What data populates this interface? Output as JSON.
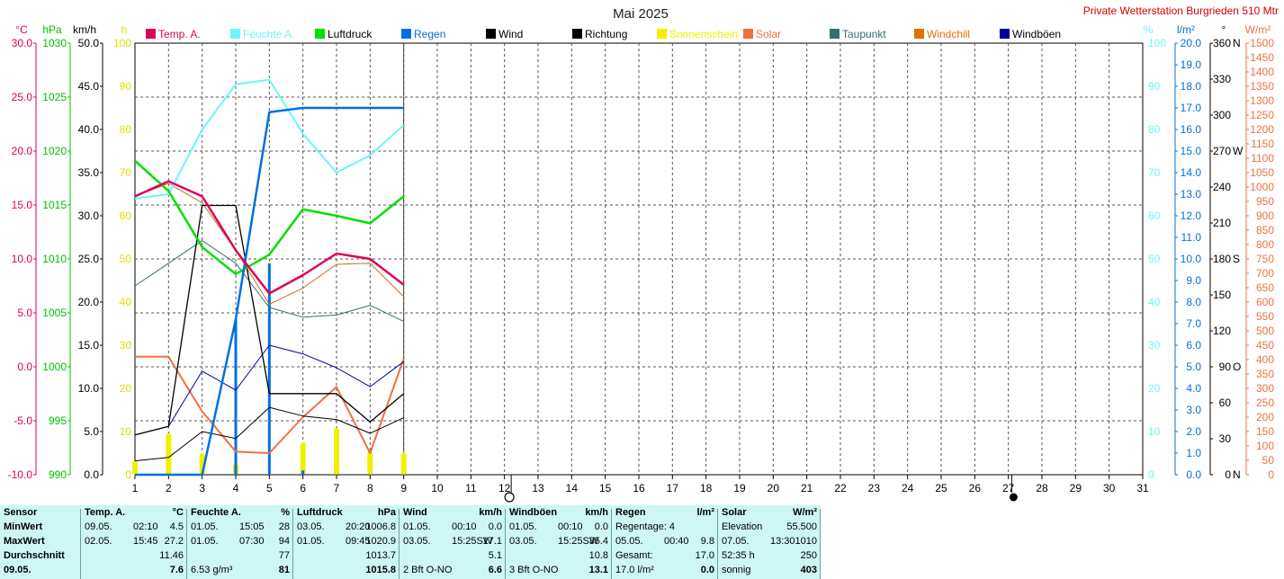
{
  "title": "Mai 2025",
  "station": "Private Wetterstation Burgrieden 510 Mtr",
  "left_axes": {
    "units": [
      "°C",
      "hPa",
      "km/h",
      "h"
    ],
    "temp_ticks": [
      "30.0",
      "25.0",
      "20.0",
      "15.0",
      "10.0",
      "5.0",
      "0.0",
      "-5.0",
      "-10.0"
    ],
    "hpa_ticks": [
      "1030",
      "1025",
      "1020",
      "1015",
      "1010",
      "1005",
      "1000",
      "995",
      "990"
    ],
    "kmh_ticks": [
      "50.0",
      "45.0",
      "40.0",
      "35.0",
      "30.0",
      "25.0",
      "20.0",
      "15.0",
      "10.0",
      "5.0",
      "0.0"
    ],
    "h_ticks": [
      "100",
      "90",
      "80",
      "70",
      "60",
      "50",
      "40",
      "30",
      "20",
      "10",
      "0"
    ]
  },
  "right_axes": {
    "units": [
      "%",
      "l/m²",
      "°",
      "W/m²"
    ],
    "pct_ticks": [
      "100",
      "90",
      "80",
      "70",
      "60",
      "50",
      "40",
      "30",
      "20",
      "10",
      "0"
    ],
    "rain_ticks": [
      "20.0",
      "19.0",
      "18.0",
      "17.0",
      "16.0",
      "15.0",
      "14.0",
      "13.0",
      "12.0",
      "11.0",
      "10.0",
      "9.0",
      "8.0",
      "7.0",
      "6.0",
      "5.0",
      "4.0",
      "3.0",
      "2.0",
      "1.0",
      "0.0"
    ],
    "deg_ticks": [
      "360",
      "330",
      "300",
      "270",
      "240",
      "210",
      "180",
      "150",
      "120",
      "90",
      "60",
      "30",
      "0"
    ],
    "dir_letters": {
      "360": "N",
      "270": "W",
      "180": "S",
      "90": "O",
      "0": "N"
    },
    "wm2_ticks": [
      "1500",
      "1450",
      "1400",
      "1350",
      "1300",
      "1250",
      "1200",
      "1150",
      "1100",
      "1050",
      "1000",
      "950",
      "900",
      "850",
      "800",
      "750",
      "700",
      "650",
      "600",
      "550",
      "500",
      "450",
      "400",
      "350",
      "300",
      "250",
      "200",
      "150",
      "100",
      "50",
      "0"
    ]
  },
  "legend": [
    {
      "name": "Temp. A.",
      "color": "#e0005a"
    },
    {
      "name": "Feuchte A.",
      "color": "#6ef6f6"
    },
    {
      "name": "Luftdruck",
      "color": "#00e000"
    },
    {
      "name": "Regen",
      "color": "#0070e0"
    },
    {
      "name": "Wind",
      "color": "#000000"
    },
    {
      "name": "Richtung",
      "color": "#000000"
    },
    {
      "name": "Sonnenschein",
      "color": "#f0f000"
    },
    {
      "name": "Solar",
      "color": "#f07040"
    },
    {
      "name": "Taupunkt",
      "color": "#307070"
    },
    {
      "name": "Windchill",
      "color": "#e07000"
    },
    {
      "name": "Windböen",
      "color": "#0000a0"
    }
  ],
  "chart_data": {
    "type": "line",
    "title": "Mai 2025",
    "x": [
      1,
      2,
      3,
      4,
      5,
      6,
      7,
      8,
      9
    ],
    "x_ticks": [
      "1",
      "2",
      "3",
      "4",
      "5",
      "6",
      "7",
      "8",
      "9",
      "10",
      "11",
      "12",
      "13",
      "14",
      "15",
      "16",
      "17",
      "18",
      "19",
      "20",
      "21",
      "22",
      "23",
      "24",
      "25",
      "26",
      "27",
      "28",
      "29",
      "30",
      "31"
    ],
    "xlim": [
      1,
      31
    ],
    "grid": true,
    "legend_position": "top",
    "moon_phases": [
      {
        "day": 12.2,
        "phase": "full"
      },
      {
        "day": 27.1,
        "phase": "new"
      }
    ],
    "series": [
      {
        "name": "Temp. A.",
        "axis": "°C",
        "ylim": [
          -10,
          30
        ],
        "values": [
          15.8,
          17.2,
          15.8,
          10.8,
          6.8,
          8.5,
          10.5,
          10.0,
          7.6
        ]
      },
      {
        "name": "Feuchte A.",
        "axis": "%",
        "ylim": [
          0,
          100
        ],
        "values": [
          64,
          65,
          80,
          90.5,
          91.5,
          79,
          70,
          74,
          81
        ]
      },
      {
        "name": "Luftdruck",
        "axis": "hPa",
        "ylim": [
          990,
          1030
        ],
        "values": [
          1019.1,
          1016.3,
          1011.1,
          1008.6,
          1010.4,
          1014.6,
          1014.0,
          1013.3,
          1015.8
        ]
      },
      {
        "name": "Regen",
        "axis": "l/m²",
        "ylim": [
          0,
          20
        ],
        "values": [
          0,
          0,
          0,
          7.2,
          16.8,
          17.0,
          17.0,
          17.0,
          17.0
        ]
      },
      {
        "name": "Wind",
        "axis": "km/h",
        "ylim": [
          0,
          50
        ],
        "values": [
          1.6,
          2.0,
          5.0,
          4.2,
          7.8,
          6.8,
          6.4,
          4.8,
          6.6
        ]
      },
      {
        "name": "Richtung",
        "axis": "km/h",
        "ylim": [
          0,
          50
        ],
        "values": [
          4.6,
          5.6,
          31.2,
          31.2,
          9.4,
          9.4,
          9.4,
          6.1,
          9.4
        ]
      },
      {
        "name": "Solar",
        "axis": "W/m²",
        "ylim": [
          0,
          1500
        ],
        "values": [
          410,
          410,
          220,
          80,
          75,
          200,
          305,
          75,
          403
        ]
      },
      {
        "name": "Taupunkt",
        "axis": "°C",
        "ylim": [
          -10,
          30
        ],
        "values": [
          7.5,
          9.6,
          11.7,
          9.6,
          5.5,
          4.6,
          4.8,
          5.7,
          4.2
        ]
      },
      {
        "name": "Windchill",
        "axis": "°C",
        "ylim": [
          -10,
          30
        ],
        "values": [
          15.8,
          17.0,
          15.2,
          10.8,
          5.8,
          7.3,
          9.5,
          9.6,
          6.5
        ]
      },
      {
        "name": "Windböen",
        "axis": "km/h",
        "ylim": [
          0,
          50
        ],
        "values": [
          4.6,
          5.6,
          12.0,
          9.8,
          15.0,
          14.0,
          12.4,
          10.2,
          13.1
        ]
      },
      {
        "name": "Sonnenschein",
        "axis": "h",
        "ylim": [
          0,
          100
        ],
        "type": "bar",
        "values": [
          3.2,
          9.6,
          5.0,
          2.6,
          0,
          7.5,
          10.8,
          5.4,
          5.2
        ]
      },
      {
        "name": "Regen (täglich)",
        "axis": "l/m²",
        "ylim": [
          0,
          20
        ],
        "type": "bar",
        "values": [
          0,
          0,
          0,
          7.2,
          9.8,
          0.2,
          0,
          0,
          0
        ]
      }
    ]
  },
  "stats": {
    "row_labels": [
      "Sensor",
      "MinWert",
      "MaxWert",
      "Durchschnitt",
      "09.05."
    ],
    "temp": {
      "header": "Temp. A.",
      "unit": "°C",
      "min": [
        "09.05.",
        "02:10",
        "4.5"
      ],
      "max": [
        "02.05.",
        "15:45",
        "27.2"
      ],
      "avg": "11.46",
      "today": "7.6"
    },
    "feuchte": {
      "header": "Feuchte A.",
      "unit": "%",
      "min": [
        "01.05.",
        "15:05",
        "28"
      ],
      "max": [
        "01.05.",
        "07:30",
        "94"
      ],
      "avg": "77",
      "today_extra": "6.53 g/m³",
      "today": "81"
    },
    "luftdruck": {
      "header": "Luftdruck",
      "unit": "hPa",
      "min": [
        "03.05.",
        "20:20",
        "1006.8"
      ],
      "max": [
        "01.05.",
        "09:45",
        "1020.9"
      ],
      "avg": "1013.7",
      "today": "1015.8"
    },
    "wind": {
      "header": "Wind",
      "unit": "km/h",
      "min": [
        "01.05.",
        "00:10",
        "0.0"
      ],
      "max": [
        "03.05.",
        "15:25SW",
        "17.1"
      ],
      "avg": "5.1",
      "today_extra": "2 Bft O-NO",
      "today": "6.6"
    },
    "windboen": {
      "header": "Windböen",
      "unit": "km/h",
      "min": [
        "01.05.",
        "00:10",
        "0.0"
      ],
      "max": [
        "03.05.",
        "15:25SW",
        "35.4"
      ],
      "avg": "10.8",
      "today_extra": "3 Bft O-NO",
      "today": "13.1"
    },
    "regen": {
      "header": "Regen",
      "unit": "l/m²",
      "min_label": "Regentage: 4",
      "max": [
        "05.05.",
        "00:40",
        "9.8"
      ],
      "avg_label": "Gesamt:",
      "avg": "17.0",
      "today_extra": "17.0 l/m²",
      "today": "0.0"
    },
    "solar": {
      "header": "Solar",
      "unit": "W/m²",
      "min_label": "Elevation",
      "min": "55.500",
      "max": [
        "07.05.",
        "13:30",
        "1010"
      ],
      "avg_label": "52:35 h",
      "avg": "250",
      "today_extra": "sonnig",
      "today": "403"
    }
  }
}
